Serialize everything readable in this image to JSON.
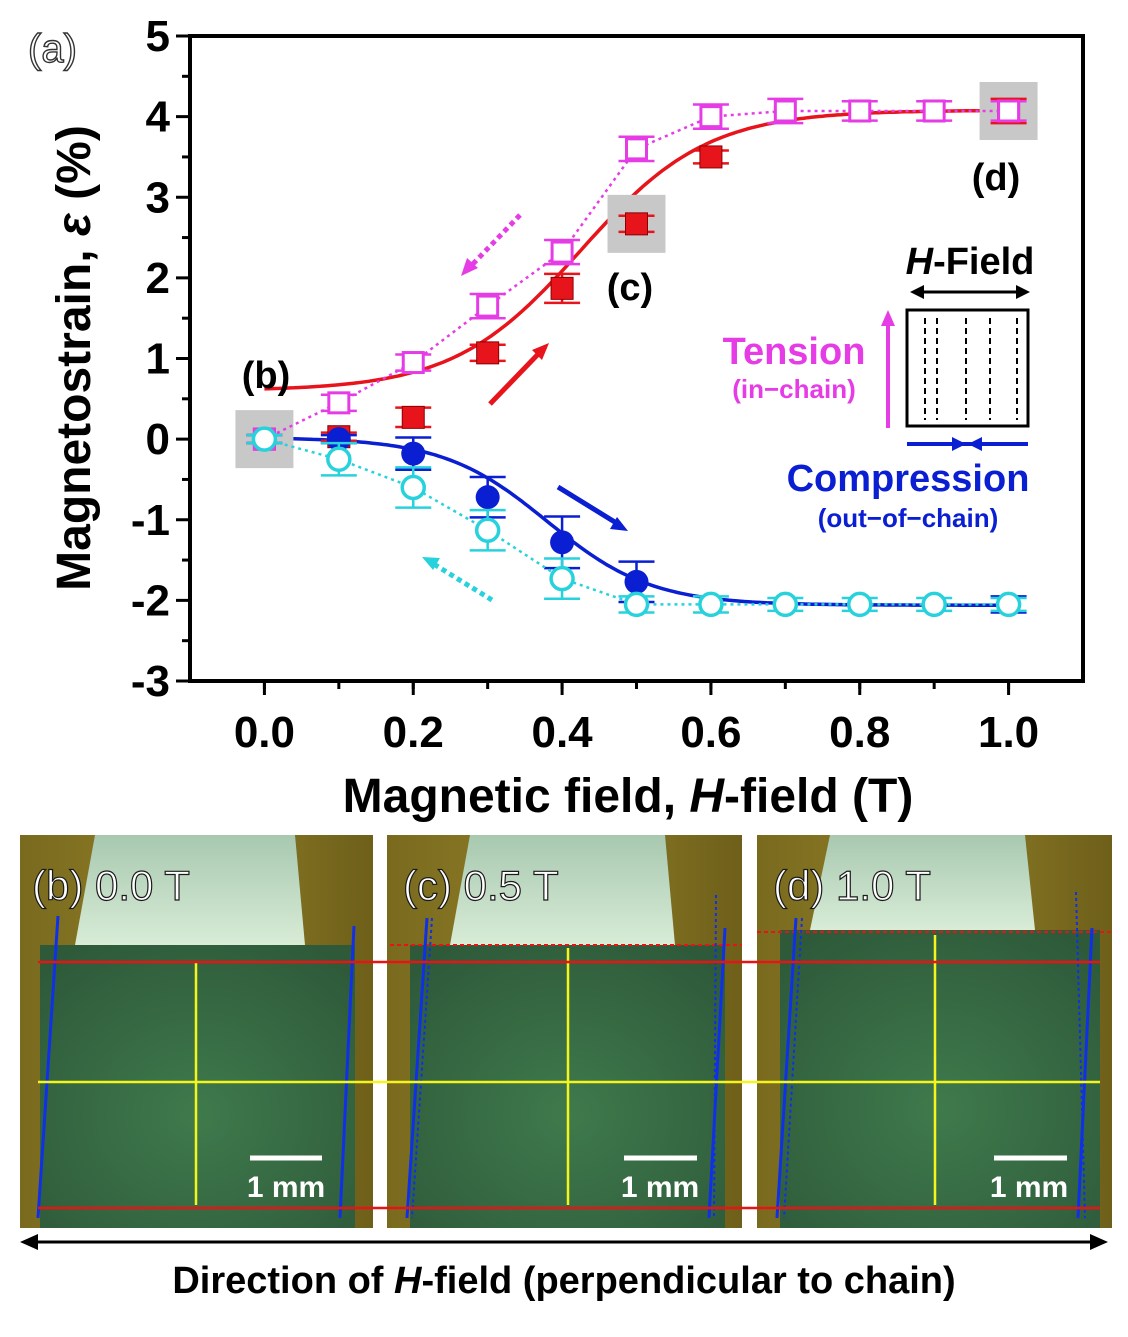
{
  "panel_label": "(a)",
  "chart_data": {
    "type": "scatter",
    "xlabel": {
      "prefix": "Magnetic field, ",
      "italic": "H",
      "suffix": "-field (T)"
    },
    "ylabel": {
      "prefix": "Magnetostrain, ",
      "italic": "ε",
      "suffix": " (%)"
    },
    "xlim": [
      -0.1,
      1.1
    ],
    "ylim": [
      -3,
      5
    ],
    "x_ticks": [
      0.0,
      0.2,
      0.4,
      0.6,
      0.8,
      1.0
    ],
    "x_tick_labels": [
      "0.0",
      "0.2",
      "0.4",
      "0.6",
      "0.8",
      "1.0"
    ],
    "y_ticks": [
      -3,
      -2,
      -1,
      0,
      1,
      2,
      3,
      4,
      5
    ],
    "y_tick_labels": [
      "-3",
      "-2",
      "-1",
      "0",
      "1",
      "2",
      "3",
      "4",
      "5"
    ],
    "x": [
      0.0,
      0.1,
      0.2,
      0.3,
      0.4,
      0.5,
      0.6,
      0.7,
      0.8,
      0.9,
      1.0
    ],
    "series": [
      {
        "name": "Tension increasing field",
        "color": "#e8141c",
        "marker": "square-filled",
        "line": "solid",
        "x": [
          0.0,
          0.1,
          0.2,
          0.3,
          0.4,
          0.5,
          0.6,
          1.0
        ],
        "values": [
          0.0,
          0.03,
          0.27,
          1.07,
          1.87,
          2.67,
          3.5,
          4.07
        ],
        "errors": [
          0.05,
          0.05,
          0.12,
          0.1,
          0.18,
          0.1,
          0.08,
          0.15
        ]
      },
      {
        "name": "Tension decreasing field",
        "color": "#e63ce6",
        "marker": "square-open",
        "line": "dotted",
        "x": [
          0.0,
          0.1,
          0.2,
          0.3,
          0.4,
          0.5,
          0.6,
          0.7,
          0.8,
          0.9,
          1.0
        ],
        "values": [
          0.0,
          0.45,
          0.95,
          1.65,
          2.32,
          3.6,
          4.0,
          4.07,
          4.07,
          4.07,
          4.07
        ],
        "errors": [
          0.05,
          0.1,
          0.1,
          0.15,
          0.15,
          0.15,
          0.15,
          0.15,
          0.12,
          0.12,
          0.12
        ]
      },
      {
        "name": "Compression increasing field",
        "color": "#0a1ed2",
        "marker": "circle-filled",
        "line": "solid",
        "x": [
          0.0,
          0.1,
          0.2,
          0.3,
          0.4,
          0.5,
          1.0
        ],
        "values": [
          0.0,
          0.0,
          -0.18,
          -0.72,
          -1.28,
          -1.77,
          -2.05
        ],
        "errors": [
          0.05,
          0.05,
          0.2,
          0.25,
          0.32,
          0.25,
          0.1
        ]
      },
      {
        "name": "Compression decreasing field",
        "color": "#28d2dc",
        "marker": "circle-open",
        "line": "dotted",
        "x": [
          0.0,
          0.1,
          0.2,
          0.3,
          0.4,
          0.5,
          0.6,
          0.7,
          0.8,
          0.9,
          1.0
        ],
        "values": [
          0.0,
          -0.25,
          -0.6,
          -1.13,
          -1.73,
          -2.05,
          -2.05,
          -2.05,
          -2.05,
          -2.05,
          -2.05
        ],
        "errors": [
          0.05,
          0.2,
          0.25,
          0.25,
          0.25,
          0.1,
          0.1,
          0.08,
          0.08,
          0.08,
          0.08
        ]
      }
    ],
    "fit_curves": [
      {
        "name": "Tension fit",
        "color": "#e8141c",
        "from": 0.6,
        "to": 4.08,
        "midpoint": 0.425,
        "width": 0.085
      },
      {
        "name": "Compression fit",
        "color": "#0a1ed2",
        "from": 0.02,
        "to": -2.06,
        "midpoint": 0.38,
        "width": 0.07
      }
    ],
    "highlighted_points": [
      {
        "x": 0.0,
        "y": 0.0,
        "label": "(b)"
      },
      {
        "x": 0.5,
        "y": 2.67,
        "label": "(c)"
      },
      {
        "x": 1.0,
        "y": 4.07,
        "label": "(d)"
      }
    ],
    "inset": {
      "field_prefix": "H",
      "field_suffix": "-Field",
      "tension_label": "Tension",
      "tension_sub": "(in−chain)",
      "compression_label": "Compression",
      "compression_sub": "(out−of−chain)",
      "tension_color": "#e63ce6",
      "compression_color": "#0a1ed2"
    }
  },
  "photos": [
    {
      "label": "(b) 0.0 T",
      "scale": "1 mm"
    },
    {
      "label": "(c) 0.5 T",
      "scale": "1 mm"
    },
    {
      "label": "(d) 1.0 T",
      "scale": "1 mm"
    }
  ],
  "direction_caption": {
    "prefix": "Direction of ",
    "italic": "H",
    "suffix": "-field (perpendicular to chain)"
  }
}
